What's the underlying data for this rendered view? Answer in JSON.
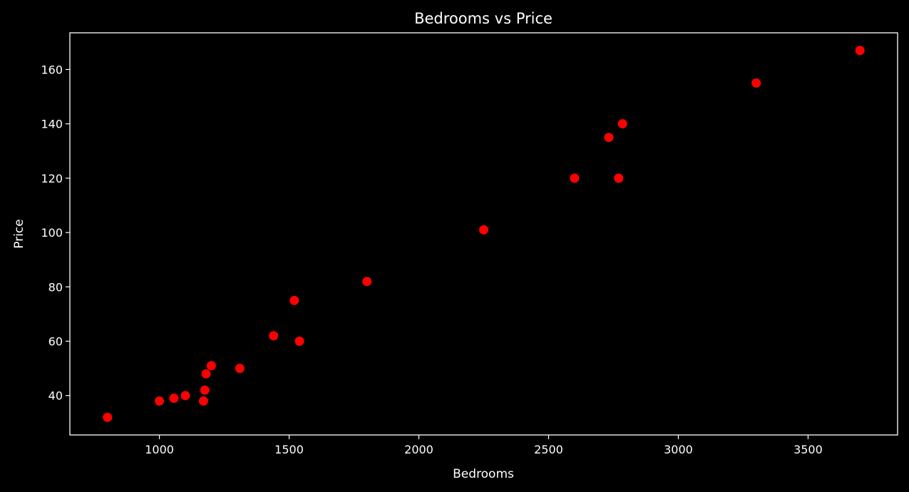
{
  "chart_data": {
    "type": "scatter",
    "title": "Bedrooms vs Price",
    "xlabel": "Bedrooms",
    "ylabel": "Price",
    "xlim": [
      655,
      3845
    ],
    "ylim": [
      25.5,
      173.5
    ],
    "xticks": [
      1000,
      1500,
      2000,
      2500,
      3000,
      3500
    ],
    "yticks": [
      40,
      60,
      80,
      100,
      120,
      140,
      160
    ],
    "grid": false,
    "background_color": "#000000",
    "axis_color": "#ffffff",
    "marker_color": "#ff0000",
    "points": [
      {
        "x": 800,
        "y": 32
      },
      {
        "x": 1000,
        "y": 38
      },
      {
        "x": 1056,
        "y": 39
      },
      {
        "x": 1100,
        "y": 40
      },
      {
        "x": 1170,
        "y": 38
      },
      {
        "x": 1175,
        "y": 42
      },
      {
        "x": 1180,
        "y": 48
      },
      {
        "x": 1200,
        "y": 51
      },
      {
        "x": 1310,
        "y": 50
      },
      {
        "x": 1440,
        "y": 62
      },
      {
        "x": 1520,
        "y": 75
      },
      {
        "x": 1540,
        "y": 60
      },
      {
        "x": 1800,
        "y": 82
      },
      {
        "x": 2250,
        "y": 101
      },
      {
        "x": 2600,
        "y": 120
      },
      {
        "x": 2732,
        "y": 135
      },
      {
        "x": 2770,
        "y": 120
      },
      {
        "x": 2785,
        "y": 140
      },
      {
        "x": 3300,
        "y": 155
      },
      {
        "x": 3700,
        "y": 167
      }
    ]
  }
}
